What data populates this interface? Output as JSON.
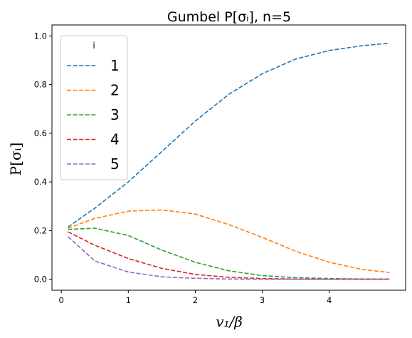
{
  "chart_data": {
    "type": "line",
    "title": "Gumbel P[σᵢ], n=5",
    "xlabel": "v₁/β",
    "ylabel": "P[σᵢ]",
    "xlim": [
      -0.14,
      5.14
    ],
    "ylim": [
      -0.045,
      1.045
    ],
    "xticks": [
      0,
      1,
      2,
      3,
      4
    ],
    "yticks": [
      0.0,
      0.2,
      0.4,
      0.6,
      0.8,
      1.0
    ],
    "grid": false,
    "line_style": "dashed",
    "legend": {
      "title": "i",
      "placement": "top-left"
    },
    "x": [
      0.1,
      0.5,
      1.0,
      1.5,
      2.0,
      2.5,
      3.0,
      3.5,
      4.0,
      4.5,
      4.9
    ],
    "series": [
      {
        "name": "1",
        "color": "#1f77b4",
        "values": [
          0.215,
          0.292,
          0.4,
          0.525,
          0.65,
          0.76,
          0.845,
          0.905,
          0.94,
          0.96,
          0.97
        ]
      },
      {
        "name": "2",
        "color": "#ff7f0e",
        "values": [
          0.21,
          0.25,
          0.28,
          0.285,
          0.268,
          0.225,
          0.172,
          0.115,
          0.07,
          0.04,
          0.028
        ]
      },
      {
        "name": "3",
        "color": "#2ca02c",
        "values": [
          0.205,
          0.21,
          0.18,
          0.12,
          0.07,
          0.035,
          0.015,
          0.007,
          0.003,
          0.001,
          0.001
        ]
      },
      {
        "name": "4",
        "color": "#d62728",
        "values": [
          0.195,
          0.14,
          0.085,
          0.045,
          0.02,
          0.008,
          0.003,
          0.001,
          0.0,
          0.0,
          0.0
        ]
      },
      {
        "name": "5",
        "color": "#9467bd",
        "values": [
          0.175,
          0.075,
          0.03,
          0.01,
          0.004,
          0.001,
          0.0,
          0.0,
          0.0,
          0.0,
          0.0
        ]
      }
    ]
  }
}
